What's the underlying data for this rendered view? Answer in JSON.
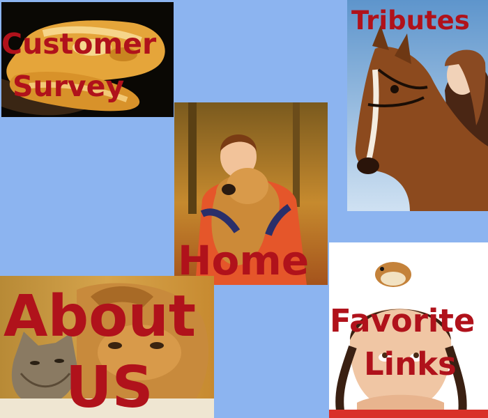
{
  "tiles": {
    "customer_survey": {
      "line1": "Customer",
      "line2": "Survey",
      "image": "python-snake-photo"
    },
    "home": {
      "label": "Home",
      "image": "boy-with-golden-retriever-photo"
    },
    "tributes": {
      "label": "Tributes",
      "image": "girl-with-horse-photo"
    },
    "about_us": {
      "line1": "About",
      "line2": "US",
      "image": "cat-and-dog-photo"
    },
    "favorite_links": {
      "line1": "Favorite",
      "line2": "Links",
      "image": "girl-with-hamster-photo"
    }
  },
  "colors": {
    "background": "#8cb4f0",
    "label": "#b0121b"
  }
}
